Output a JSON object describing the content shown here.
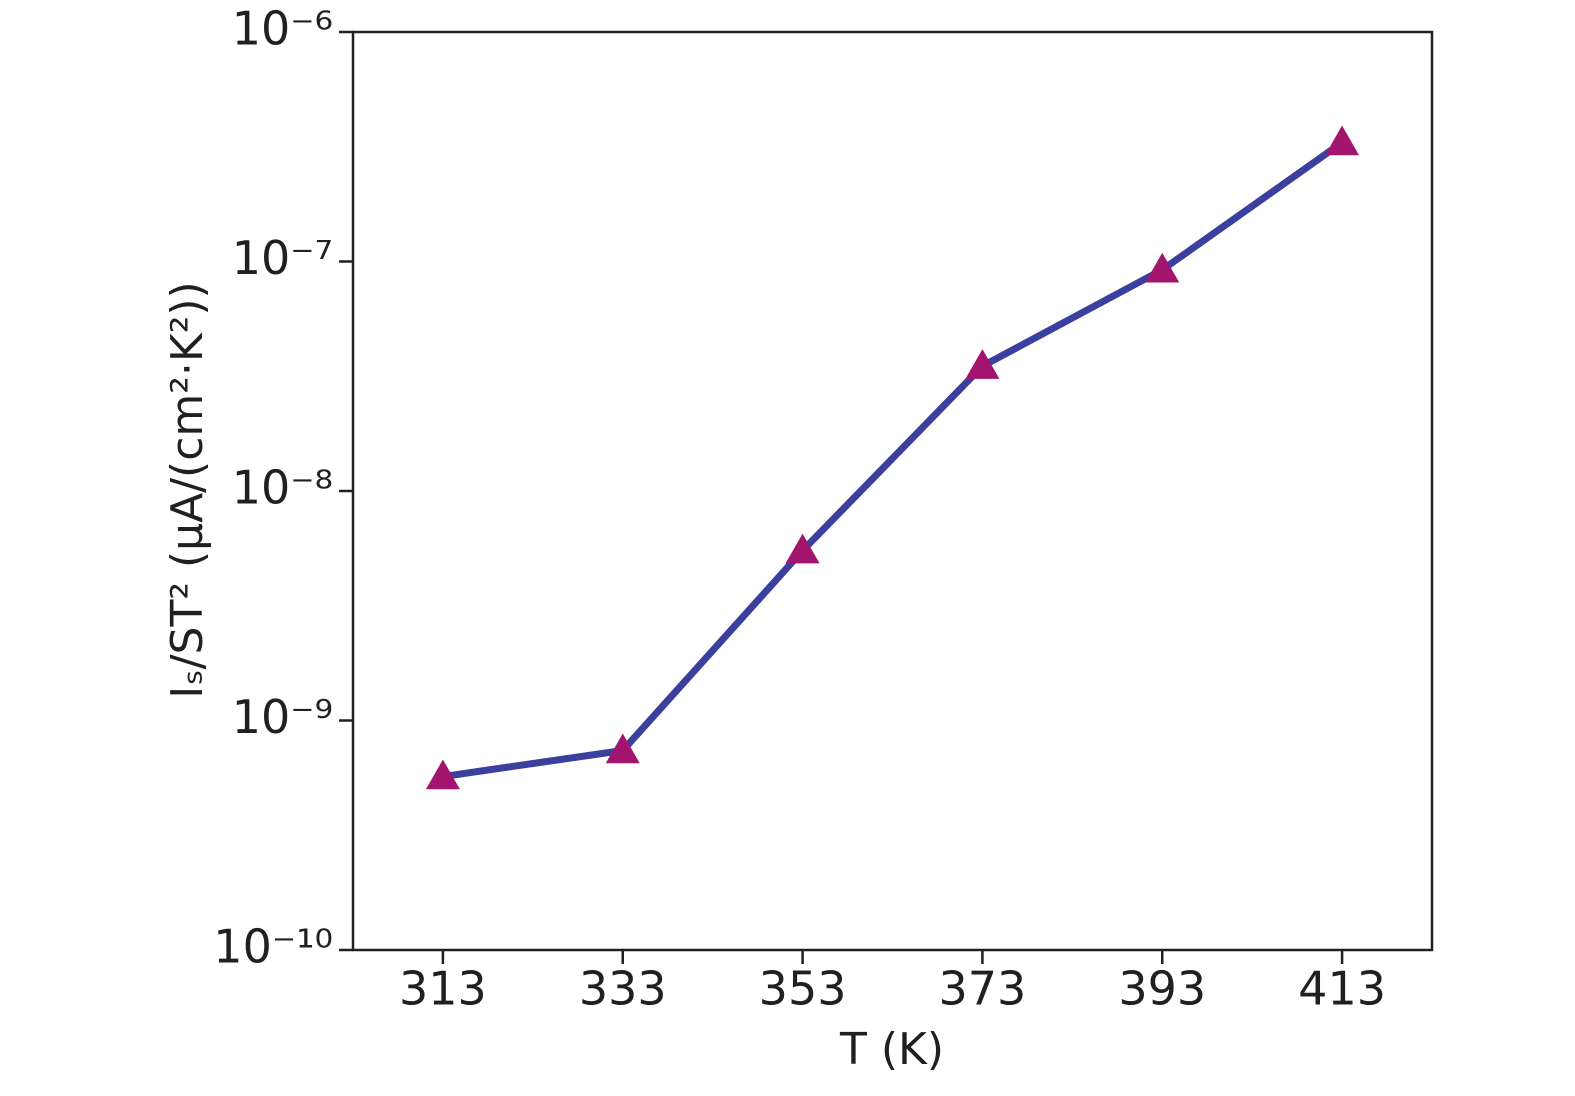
{
  "chart_data": {
    "type": "line",
    "x_label": "T (K)",
    "y_label": "Iₛ/ST² (μA/(cm²·K²))",
    "x": [
      313,
      333,
      353,
      373,
      393,
      413
    ],
    "series": [
      {
        "color": "#3b3f9e",
        "marker_color": "#a3146f",
        "values": [
          5.7e-10,
          7.4e-10,
          5.5e-09,
          3.5e-08,
          9.2e-08,
          3.3e-07
        ]
      }
    ],
    "xlim": [
      303,
      423
    ],
    "xticks": [
      313,
      333,
      353,
      373,
      393,
      413
    ],
    "ylim": [
      1e-10,
      1e-06
    ],
    "yscale": "log",
    "yticks": [
      {
        "value": 1e-10,
        "label": "10⁻¹⁰"
      },
      {
        "value": 1e-09,
        "label": "10⁻⁹"
      },
      {
        "value": 1e-08,
        "label": "10⁻⁸"
      },
      {
        "value": 1e-07,
        "label": "10⁻⁷"
      },
      {
        "value": 1e-06,
        "label": "10⁻⁶"
      }
    ]
  }
}
